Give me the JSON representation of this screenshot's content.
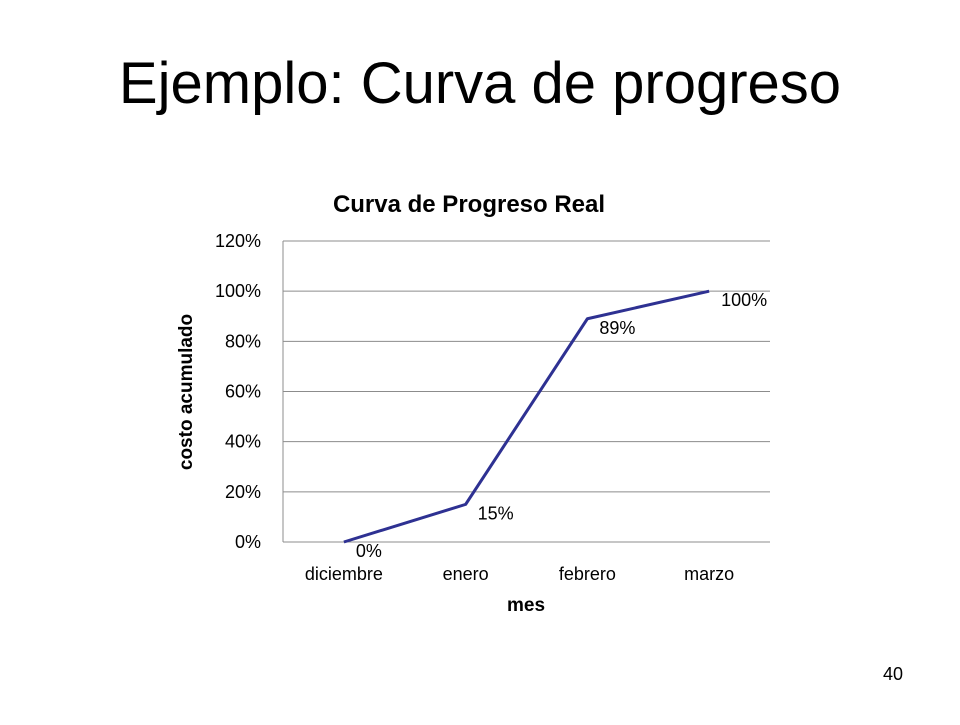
{
  "slide": {
    "title": "Ejemplo: Curva de progreso",
    "page_number": "40"
  },
  "colors": {
    "series": "#2e3192",
    "grid": "#8c8c8c",
    "text": "#000000"
  },
  "chart_data": {
    "type": "line",
    "title": "Curva de Progreso Real",
    "xlabel": "mes",
    "ylabel": "costo acumulado",
    "categories": [
      "diciembre",
      "enero",
      "febrero",
      "marzo"
    ],
    "y_ticks": [
      "0%",
      "20%",
      "40%",
      "60%",
      "80%",
      "100%",
      "120%"
    ],
    "ylim": [
      0,
      1.2
    ],
    "grid": true,
    "legend": "none",
    "series": [
      {
        "values": [
          0,
          0.15,
          0.89,
          1.0
        ],
        "labels": [
          "0%",
          "15%",
          "89%",
          "100%"
        ]
      }
    ]
  }
}
